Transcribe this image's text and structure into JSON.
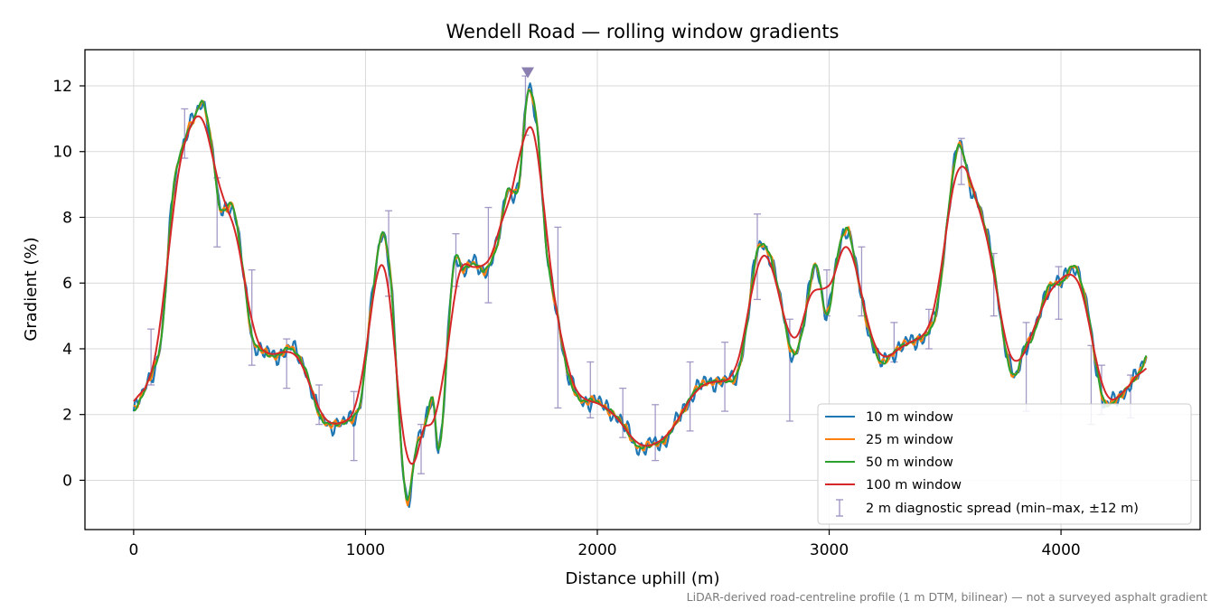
{
  "chart_data": {
    "type": "line",
    "title": "Wendell Road — rolling window gradients",
    "xlabel": "Distance uphill (m)",
    "ylabel": "Gradient (%)",
    "xlim": [
      -210,
      4600
    ],
    "ylim": [
      -1.5,
      13.1
    ],
    "xticks": [
      0,
      1000,
      2000,
      3000,
      4000
    ],
    "yticks": [
      0,
      2,
      4,
      6,
      8,
      10,
      12
    ],
    "grid": true,
    "legend_position": "lower-right",
    "footnote": "LiDAR-derived road-centreline profile (1 m DTM, bilinear) — not a surveyed asphalt gradient",
    "peak_marker": {
      "x": 1700,
      "y": 12.4,
      "color": "#8a7fb0"
    },
    "series": [
      {
        "name": "10 m window",
        "color": "#1f77b4",
        "noise": 0.28
      },
      {
        "name": "25 m window",
        "color": "#ff7f0e",
        "noise": 0.14
      },
      {
        "name": "50 m window",
        "color": "#2ca02c",
        "noise": 0.06
      },
      {
        "name": "100 m window",
        "color": "#d62728",
        "noise": 0.0,
        "smoothing": 0.6
      }
    ],
    "profile": {
      "x": [
        0,
        60,
        120,
        170,
        220,
        260,
        300,
        340,
        370,
        430,
        470,
        510,
        560,
        620,
        680,
        740,
        800,
        860,
        920,
        980,
        1020,
        1070,
        1110,
        1150,
        1180,
        1220,
        1250,
        1290,
        1320,
        1380,
        1420,
        1470,
        1520,
        1570,
        1610,
        1660,
        1700,
        1740,
        1780,
        1830,
        1870,
        1920,
        1990,
        2060,
        2120,
        2180,
        2240,
        2300,
        2360,
        2420,
        2480,
        2540,
        2600,
        2640,
        2690,
        2740,
        2790,
        2840,
        2880,
        2940,
        2990,
        3040,
        3080,
        3120,
        3170,
        3220,
        3260,
        3320,
        3380,
        3430,
        3470,
        3520,
        3560,
        3610,
        3660,
        3710,
        3760,
        3800,
        3840,
        3880,
        3940,
        4000,
        4060,
        4120,
        4160,
        4190,
        4240,
        4300,
        4340,
        4370
      ],
      "y": [
        2.1,
        3.0,
        4.3,
        8.8,
        10.3,
        11.0,
        11.5,
        10.0,
        8.3,
        8.3,
        6.5,
        4.4,
        3.9,
        3.8,
        4.0,
        3.4,
        2.0,
        1.7,
        1.8,
        2.4,
        5.0,
        7.5,
        6.0,
        1.5,
        -0.6,
        1.0,
        1.5,
        2.5,
        1.0,
        6.5,
        6.4,
        6.6,
        6.4,
        7.2,
        8.8,
        8.9,
        11.8,
        10.8,
        7.0,
        5.0,
        3.3,
        2.5,
        2.4,
        2.1,
        1.6,
        1.0,
        1.1,
        1.3,
        2.0,
        2.7,
        3.0,
        3.0,
        3.2,
        4.5,
        7.0,
        6.9,
        5.5,
        3.9,
        4.4,
        6.6,
        5.0,
        7.0,
        7.6,
        6.3,
        4.6,
        3.6,
        3.8,
        4.1,
        4.3,
        4.5,
        5.5,
        8.5,
        10.2,
        9.0,
        8.0,
        6.5,
        4.0,
        3.2,
        4.0,
        4.4,
        5.8,
        6.0,
        6.5,
        5.0,
        3.2,
        2.3,
        2.5,
        2.9,
        3.3,
        3.8
      ]
    },
    "diagnostic_spread": {
      "label": "2 m diagnostic spread (min–max, ±12 m)",
      "color": "#9a8fc0",
      "x": [
        75,
        220,
        360,
        510,
        660,
        800,
        950,
        1100,
        1240,
        1390,
        1530,
        1690,
        1830,
        1970,
        2110,
        2250,
        2400,
        2550,
        2690,
        2830,
        2990,
        3140,
        3280,
        3430,
        3570,
        3710,
        3850,
        3990,
        4130,
        4175,
        4300
      ],
      "lo": [
        2.9,
        9.8,
        7.1,
        3.5,
        2.8,
        1.7,
        0.6,
        5.6,
        0.2,
        5.9,
        5.4,
        10.5,
        2.2,
        1.9,
        1.3,
        0.6,
        1.5,
        2.1,
        5.5,
        1.8,
        5.0,
        5.0,
        3.6,
        4.0,
        9.0,
        5.0,
        2.1,
        4.9,
        1.7,
        2.0,
        1.9
      ],
      "hi": [
        4.6,
        11.3,
        9.2,
        6.4,
        4.3,
        2.9,
        2.7,
        8.2,
        1.7,
        7.5,
        8.3,
        12.3,
        7.7,
        3.6,
        2.8,
        2.3,
        3.6,
        4.2,
        8.1,
        4.9,
        6.4,
        7.1,
        4.8,
        5.2,
        10.4,
        6.9,
        4.8,
        6.5,
        4.1,
        3.5,
        3.2
      ]
    }
  }
}
